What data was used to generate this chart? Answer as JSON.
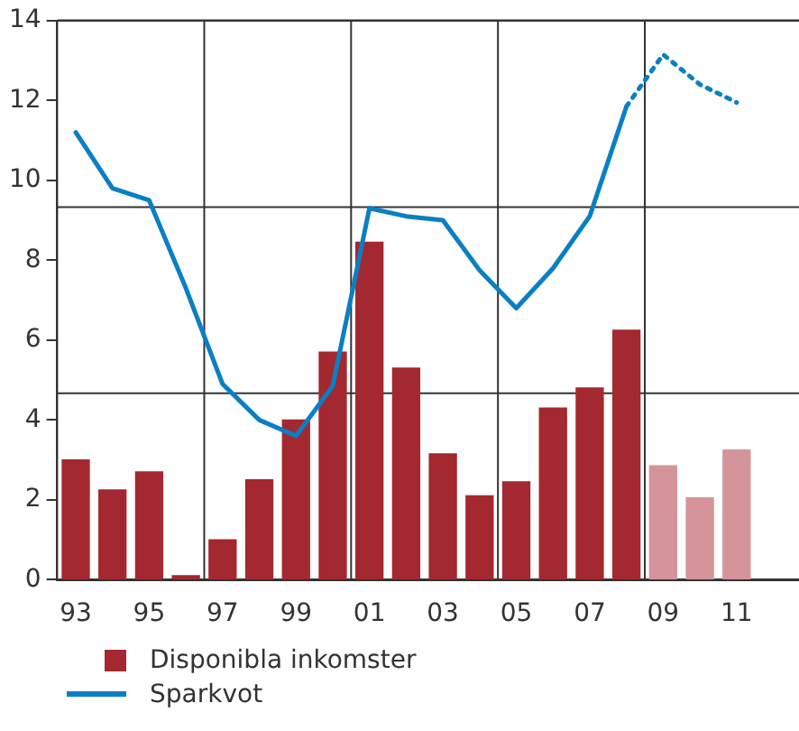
{
  "chart_data": {
    "type": "bar",
    "x": [
      1993,
      1994,
      1995,
      1996,
      1997,
      1998,
      1999,
      2000,
      2001,
      2002,
      2003,
      2004,
      2005,
      2006,
      2007,
      2008,
      2009,
      2010,
      2011
    ],
    "series": [
      {
        "name": "Disponibla inkomster",
        "color": "#a4282f",
        "colors": [
          "#a4282f",
          "#a4282f",
          "#a4282f",
          "#a4282f",
          "#a4282f",
          "#a4282f",
          "#a4282f",
          "#a4282f",
          "#a4282f",
          "#a4282f",
          "#a4282f",
          "#a4282f",
          "#a4282f",
          "#a4282f",
          "#a4282f",
          "#a4282f",
          "#d4949a",
          "#d4949a",
          "#d4949a"
        ],
        "values": [
          3.0,
          2.25,
          2.7,
          0.1,
          1.0,
          2.5,
          4.0,
          5.7,
          8.45,
          5.3,
          3.15,
          2.1,
          2.45,
          4.3,
          4.8,
          6.25,
          2.85,
          2.05,
          3.25
        ]
      },
      {
        "name": "Sparkvot",
        "type": "line",
        "color": "#0a7fc4",
        "line_style": "solid",
        "values": [
          11.2,
          9.8,
          9.5,
          7.3,
          4.9,
          4.0,
          3.6,
          4.85,
          9.3,
          9.1,
          9.0,
          7.75,
          6.8,
          7.8,
          9.1,
          11.85,
          null,
          null,
          null
        ]
      },
      {
        "type": "line",
        "color": "#0a7fc4",
        "line_style": "dotted",
        "values": [
          null,
          null,
          null,
          null,
          null,
          null,
          null,
          null,
          null,
          null,
          null,
          null,
          null,
          null,
          null,
          11.85,
          13.15,
          12.4,
          11.95
        ]
      }
    ],
    "xlim": [
      1992.5,
      2012.7
    ],
    "xticks": [
      {
        "value": 1993,
        "label": "93"
      },
      {
        "value": 1995,
        "label": "95"
      },
      {
        "value": 1997,
        "label": "97"
      },
      {
        "value": 1999,
        "label": "99"
      },
      {
        "value": 2001,
        "label": "01"
      },
      {
        "value": 2003,
        "label": "03"
      },
      {
        "value": 2005,
        "label": "05"
      },
      {
        "value": 2007,
        "label": "07"
      },
      {
        "value": 2009,
        "label": "09"
      },
      {
        "value": 2011,
        "label": "11"
      }
    ],
    "ylim": [
      0,
      14
    ],
    "yticks": [
      0,
      2,
      4,
      6,
      8,
      10,
      12,
      14
    ],
    "ref_lines": [
      {
        "axis": "x",
        "value": 1996.5,
        "color": "#333333"
      },
      {
        "axis": "x",
        "value": 2000.5,
        "color": "#333333"
      },
      {
        "axis": "x",
        "value": 2004.5,
        "color": "#333333"
      },
      {
        "axis": "x",
        "value": 2008.5,
        "color": "#333333"
      },
      {
        "axis": "y",
        "value": 9.33,
        "color": "#333333"
      },
      {
        "axis": "y",
        "value": 4.67,
        "color": "#333333"
      }
    ],
    "grid": false,
    "marker": "none",
    "legend": "bottom left"
  }
}
